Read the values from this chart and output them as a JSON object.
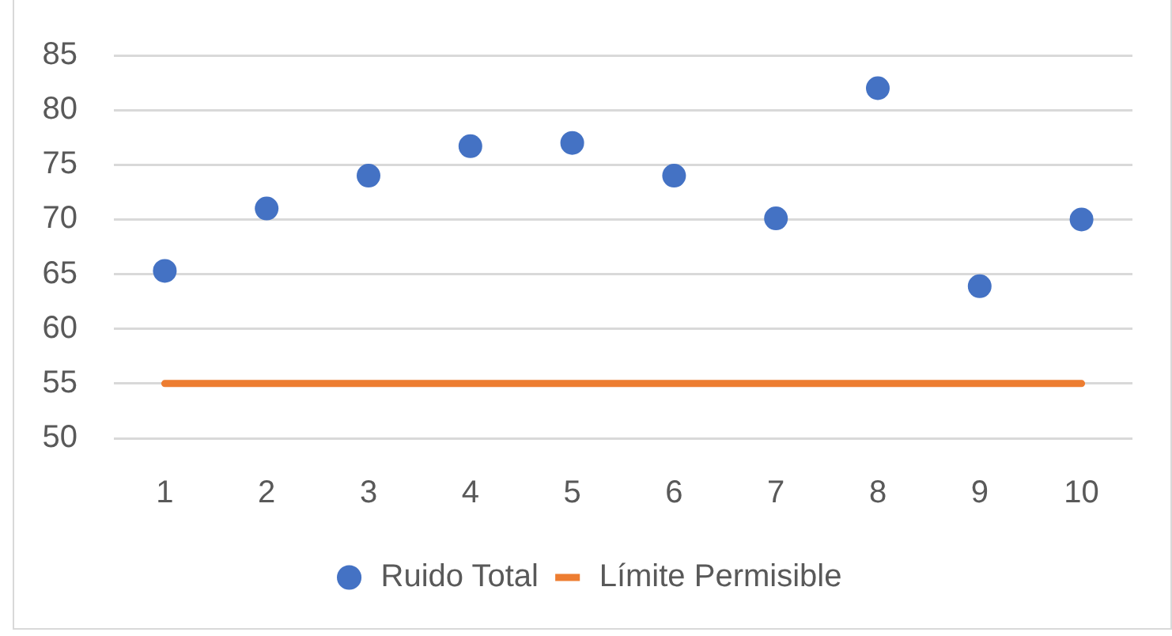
{
  "chart_data": {
    "type": "line",
    "categories": [
      "1",
      "2",
      "3",
      "4",
      "5",
      "6",
      "7",
      "8",
      "9",
      "10"
    ],
    "series": [
      {
        "name": "Ruido Total",
        "type": "scatter",
        "color": "#4472c4",
        "marker": "circle",
        "values": [
          65.3,
          71,
          74,
          76.7,
          77,
          74,
          70.1,
          82,
          63.9,
          70
        ]
      },
      {
        "name": "Límite Permisible",
        "color": "#ed7d31",
        "marker": "none",
        "values": [
          55,
          55,
          55,
          55,
          55,
          55,
          55,
          55,
          55,
          55
        ]
      }
    ],
    "ylim": [
      50,
      85
    ],
    "yticks": [
      50,
      55,
      60,
      65,
      70,
      75,
      80,
      85
    ],
    "grid": "y",
    "legend": "bottom"
  }
}
